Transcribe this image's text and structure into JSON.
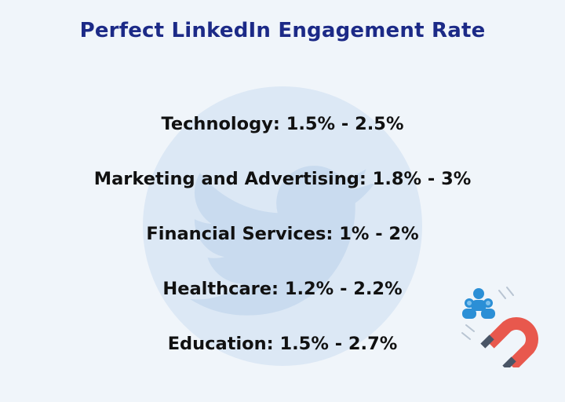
{
  "title": "Perfect LinkedIn Engagement Rate",
  "stats": [
    "Technology: 1.5% - 2.5%",
    "Marketing and Advertising: 1.8% - 3%",
    "Financial Services: 1% - 2%",
    "Healthcare: 1.2% - 2.2%",
    "Education: 1.5% - 2.7%"
  ],
  "icons": {
    "watermark": "twitter-bird-icon",
    "illustration": "magnet-attracting-people-icon"
  },
  "colors": {
    "background": "#f0f5fa",
    "title": "#1c2a87",
    "text": "#111111",
    "watermark": "#dce8f5",
    "magnet_red": "#e8584d",
    "magnet_tip": "#4a5566",
    "people_blue": "#2b8fd6"
  }
}
